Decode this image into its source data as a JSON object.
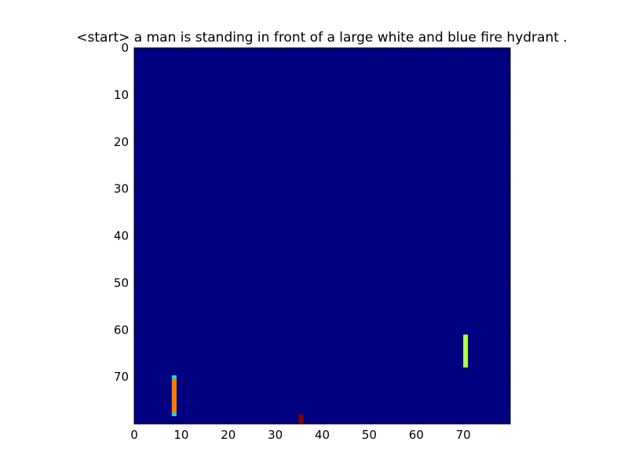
{
  "chart_data": {
    "type": "heatmap",
    "title": "<start> a man is standing in front of a large white and blue fire hydrant .",
    "xlabel": "",
    "ylabel": "",
    "xlim": [
      0,
      80
    ],
    "ylim": [
      80,
      0
    ],
    "y_axis_inverted": true,
    "x_ticks": [
      0,
      10,
      20,
      30,
      40,
      50,
      60,
      70
    ],
    "y_ticks": [
      0,
      10,
      20,
      30,
      40,
      50,
      60,
      70
    ],
    "colormap": "jet",
    "background_value": 0.0,
    "background_color": "#000080",
    "grid": false,
    "highlights": [
      {
        "x": [
          8,
          9
        ],
        "y": [
          70,
          78
        ],
        "value": 0.8,
        "color": "#ff7a00",
        "edge_color": "#00e0e8"
      },
      {
        "x": [
          70,
          71
        ],
        "y": [
          61,
          68
        ],
        "value": 0.62,
        "color": "#b4ff46"
      },
      {
        "x": [
          35,
          36
        ],
        "y": [
          78,
          80
        ],
        "value": 0.95,
        "color": "#8b0000"
      }
    ]
  }
}
